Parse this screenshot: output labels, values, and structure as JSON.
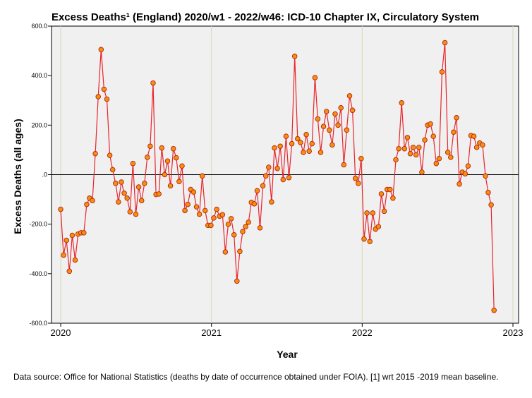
{
  "chart_data": {
    "type": "line",
    "title": "Excess Deaths¹ (England) 2020/w1 - 2022/w46: ICD-10 Chapter IX, Circulatory System",
    "xlabel": "Year",
    "ylabel": "Excess Deaths (all ages)",
    "x_range": [
      2020,
      2023
    ],
    "ylim": [
      -600,
      600
    ],
    "x_ticks": [
      "2020",
      "2021",
      "2022",
      "2023"
    ],
    "y_ticks": [
      "600.0",
      "400.0",
      "200.0",
      ".0",
      "-200.0",
      "-400.0",
      "-600.0"
    ],
    "reference_line": 0,
    "grid": "vertical at year ticks",
    "series": [
      {
        "name": "Excess deaths",
        "x_start": 2020.0,
        "x_step_weeks": 1,
        "values": [
          -140,
          -325,
          -265,
          -390,
          -245,
          -345,
          -240,
          -235,
          -235,
          -120,
          -95,
          -105,
          85,
          315,
          505,
          345,
          305,
          78,
          20,
          -35,
          -110,
          -30,
          -75,
          -95,
          -150,
          45,
          -160,
          -50,
          -105,
          -35,
          70,
          115,
          370,
          -80,
          -78,
          108,
          0,
          55,
          -45,
          105,
          68,
          -28,
          35,
          -145,
          -120,
          -60,
          -70,
          -130,
          -160,
          -5,
          -145,
          -205,
          -205,
          -175,
          -140,
          -168,
          -162,
          -312,
          -200,
          -178,
          -243,
          -430,
          -310,
          -230,
          -210,
          -192,
          -112,
          -118,
          -65,
          -215,
          -45,
          -5,
          30,
          -110,
          108,
          25,
          115,
          -20,
          155,
          -12,
          125,
          478,
          145,
          130,
          90,
          162,
          95,
          125,
          392,
          225,
          90,
          195,
          255,
          180,
          120,
          245,
          200,
          270,
          40,
          180,
          318,
          260,
          -15,
          -35,
          65,
          -260,
          -155,
          -270,
          -155,
          -220,
          -210,
          -78,
          -148,
          -60,
          -60,
          -95,
          60,
          105,
          290,
          105,
          150,
          85,
          110,
          80,
          110,
          10,
          140,
          200,
          205,
          155,
          45,
          65,
          415,
          533,
          90,
          70,
          172,
          230,
          -38,
          10,
          3,
          35,
          158,
          155,
          110,
          128,
          120,
          -5,
          -72,
          -122,
          -548
        ]
      }
    ]
  },
  "caption": "Data source: Office for National Statistics (deaths by date of occurrence obtained under FOIA). [1] wrt 2015 -2019 mean baseline."
}
